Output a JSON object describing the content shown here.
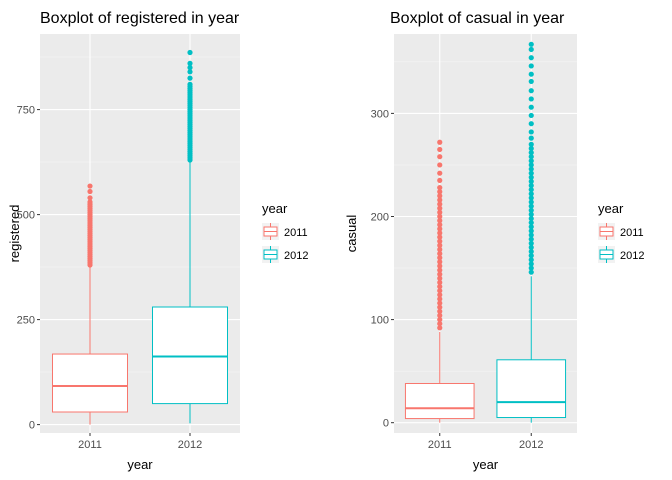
{
  "chart_data": [
    {
      "type": "boxplot",
      "title": "Boxplot of registered in year",
      "xlabel": "year",
      "ylabel": "registered",
      "ylim": [
        -20,
        930
      ],
      "yticks": [
        0,
        250,
        500,
        750
      ],
      "ytick_labels": [
        "0",
        "250",
        "500",
        "750"
      ],
      "categories": [
        "2011",
        "2012"
      ],
      "legend": {
        "title": "year",
        "position": "right",
        "entries": [
          "2011",
          "2012"
        ]
      },
      "grid": true,
      "series": [
        {
          "name": "2011",
          "color": "#F8766D",
          "min": 0,
          "q1": 30,
          "median": 92,
          "q3": 168,
          "whisker_high": 375,
          "outliers": [
            380,
            385,
            390,
            395,
            400,
            405,
            410,
            415,
            420,
            425,
            430,
            435,
            440,
            445,
            450,
            455,
            460,
            465,
            470,
            475,
            480,
            485,
            490,
            495,
            500,
            505,
            510,
            515,
            520,
            525,
            530,
            540,
            555,
            568
          ]
        },
        {
          "name": "2012",
          "color": "#00BFC4",
          "min": 3,
          "q1": 50,
          "median": 162,
          "q3": 280,
          "whisker_high": 625,
          "outliers": [
            630,
            635,
            640,
            645,
            650,
            655,
            660,
            665,
            670,
            675,
            680,
            685,
            690,
            695,
            700,
            705,
            710,
            715,
            720,
            725,
            730,
            735,
            740,
            745,
            750,
            755,
            760,
            765,
            770,
            775,
            780,
            785,
            790,
            795,
            800,
            805,
            810,
            825,
            840,
            850,
            860,
            886
          ]
        }
      ]
    },
    {
      "type": "boxplot",
      "title": "Boxplot of casual in year",
      "xlabel": "year",
      "ylabel": "casual",
      "ylim": [
        -10,
        377
      ],
      "yticks": [
        0,
        100,
        200,
        300
      ],
      "ytick_labels": [
        "0",
        "100",
        "200",
        "300"
      ],
      "categories": [
        "2011",
        "2012"
      ],
      "legend": {
        "title": "year",
        "position": "right",
        "entries": [
          "2011",
          "2012"
        ]
      },
      "grid": true,
      "series": [
        {
          "name": "2011",
          "color": "#F8766D",
          "min": 0,
          "q1": 4,
          "median": 14,
          "q3": 38,
          "whisker_high": 88,
          "outliers": [
            92,
            96,
            100,
            104,
            108,
            112,
            116,
            120,
            124,
            128,
            132,
            136,
            140,
            144,
            148,
            152,
            156,
            160,
            164,
            168,
            172,
            176,
            180,
            184,
            188,
            192,
            196,
            200,
            204,
            208,
            212,
            216,
            220,
            224,
            228,
            235,
            242,
            250,
            258,
            265,
            272
          ]
        },
        {
          "name": "2012",
          "color": "#00BFC4",
          "min": 0,
          "q1": 5,
          "median": 20,
          "q3": 61,
          "whisker_high": 142,
          "outliers": [
            146,
            150,
            154,
            158,
            162,
            166,
            170,
            174,
            178,
            182,
            186,
            190,
            194,
            198,
            202,
            206,
            210,
            214,
            218,
            222,
            226,
            230,
            234,
            238,
            242,
            246,
            250,
            254,
            258,
            262,
            266,
            270,
            276,
            282,
            290,
            298,
            306,
            314,
            322,
            331,
            338,
            346,
            354,
            362,
            367
          ]
        }
      ]
    }
  ]
}
